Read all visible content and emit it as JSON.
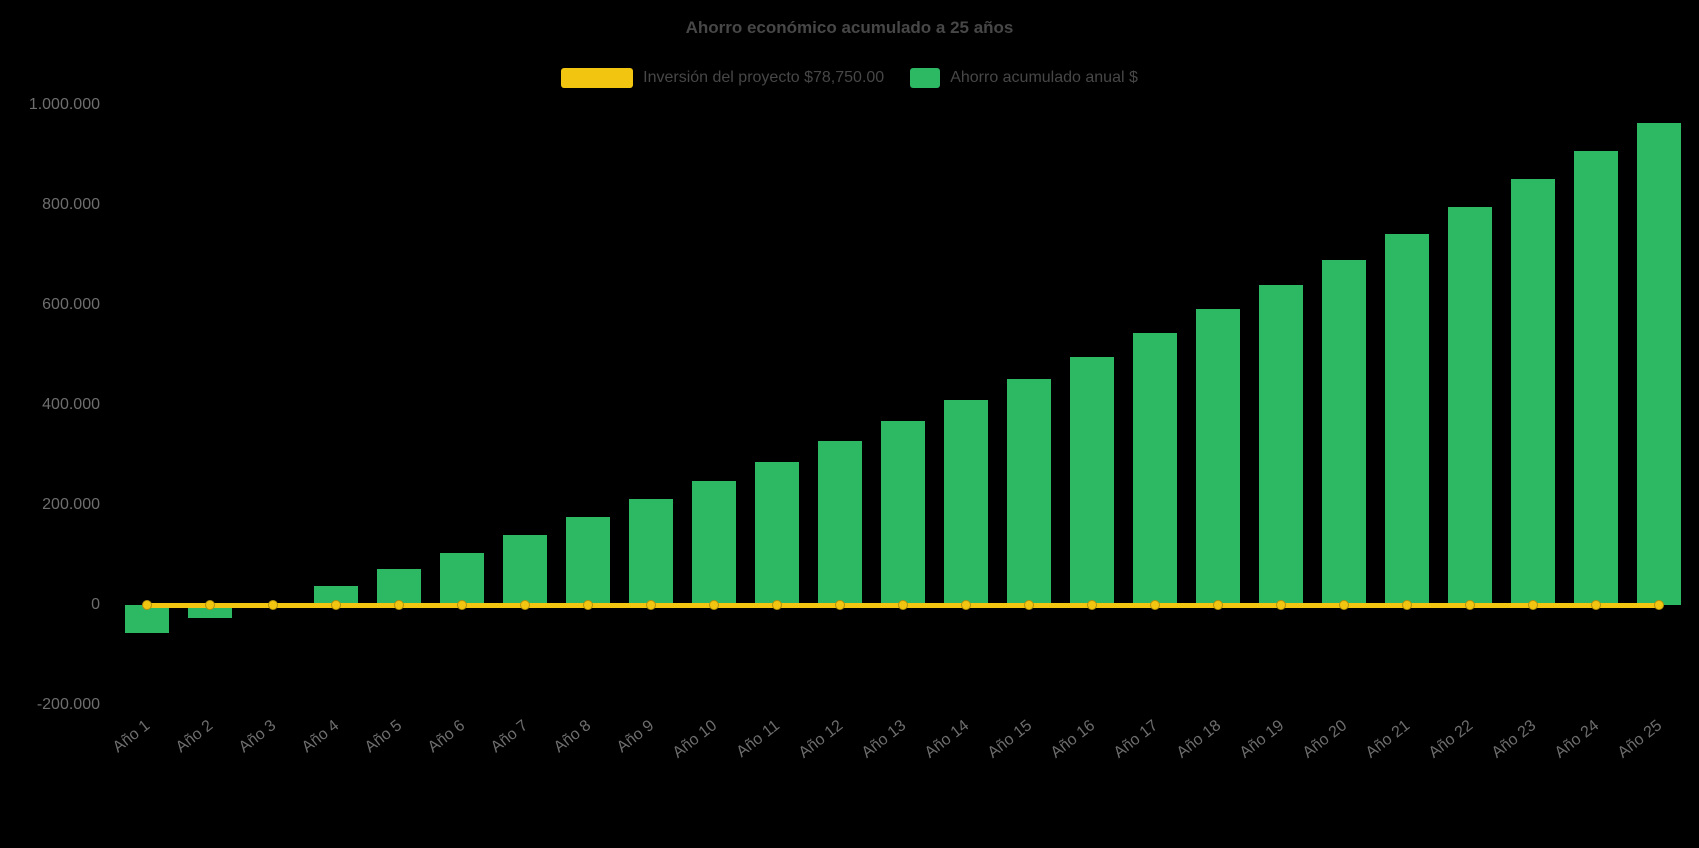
{
  "title": "Ahorro económico acumulado a 25 años",
  "legend": [
    {
      "label": "Inversión del proyecto $78,750.00",
      "color": "#F2C511",
      "marker": "line"
    },
    {
      "label": "Ahorro acumulado anual $",
      "color": "#2DB964",
      "marker": "bar"
    }
  ],
  "chart_data": {
    "type": "bar",
    "title": "Ahorro económico acumulado a 25 años",
    "background": "#000000",
    "categories": [
      "Año 1",
      "Año 2",
      "Año 3",
      "Año 4",
      "Año 5",
      "Año 6",
      "Año 7",
      "Año 8",
      "Año 9",
      "Año 10",
      "Año 11",
      "Año 12",
      "Año 13",
      "Año 14",
      "Año 15",
      "Año 16",
      "Año 17",
      "Año 18",
      "Año 19",
      "Año 20",
      "Año 21",
      "Año 22",
      "Año 23",
      "Año 24",
      "Año 25"
    ],
    "series": [
      {
        "name": "Ahorro acumulado anual $",
        "type": "bar",
        "color": "#2DB964",
        "values": [
          -55000,
          -25000,
          5000,
          38000,
          72000,
          105000,
          140000,
          176000,
          212000,
          248000,
          286000,
          328000,
          368000,
          410000,
          453000,
          497000,
          545000,
          592000,
          640000,
          690000,
          742000,
          796000,
          852000,
          908000,
          965000
        ]
      },
      {
        "name": "Inversión del proyecto $78,750.00",
        "type": "line",
        "color": "#F2C511",
        "constant_value": 0,
        "investment_amount": "$78,750.00"
      }
    ],
    "ylim": [
      -200000,
      1000000
    ],
    "yticks": [
      {
        "value": -200000,
        "label": "-200.000"
      },
      {
        "value": 0,
        "label": "0"
      },
      {
        "value": 200000,
        "label": "200.000"
      },
      {
        "value": 400000,
        "label": "400.000"
      },
      {
        "value": 600000,
        "label": "600.000"
      },
      {
        "value": 800000,
        "label": "800.000"
      },
      {
        "value": 1000000,
        "label": "1.000.000"
      }
    ],
    "grid": false,
    "legend_position": "top"
  }
}
